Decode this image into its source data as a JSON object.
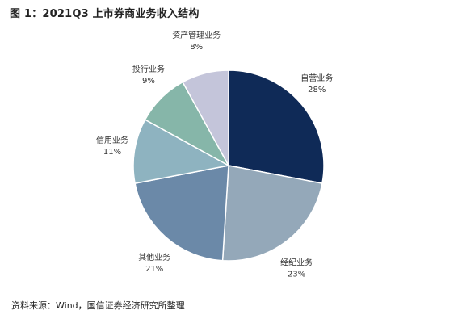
{
  "title": "图 1：2021Q3 上市券商业务收入结构",
  "source": "资料来源：Wind，国信证券经济研究所整理",
  "chart_data": {
    "type": "pie",
    "title": "图 1：2021Q3 上市券商业务收入结构",
    "start_angle_deg": 0,
    "direction": "clockwise",
    "slices": [
      {
        "name": "自营业务",
        "value": 28,
        "label": "28%",
        "color": "#0f2a57"
      },
      {
        "name": "经纪业务",
        "value": 23,
        "label": "23%",
        "color": "#94a8b9"
      },
      {
        "name": "其他业务",
        "value": 21,
        "label": "21%",
        "color": "#6b89a8"
      },
      {
        "name": "信用业务",
        "value": 11,
        "label": "11%",
        "color": "#8eb3c0"
      },
      {
        "name": "投行业务",
        "value": 9,
        "label": "9%",
        "color": "#86b6a9"
      },
      {
        "name": "资产管理业务",
        "value": 8,
        "label": "8%",
        "color": "#c4c5da"
      }
    ]
  }
}
